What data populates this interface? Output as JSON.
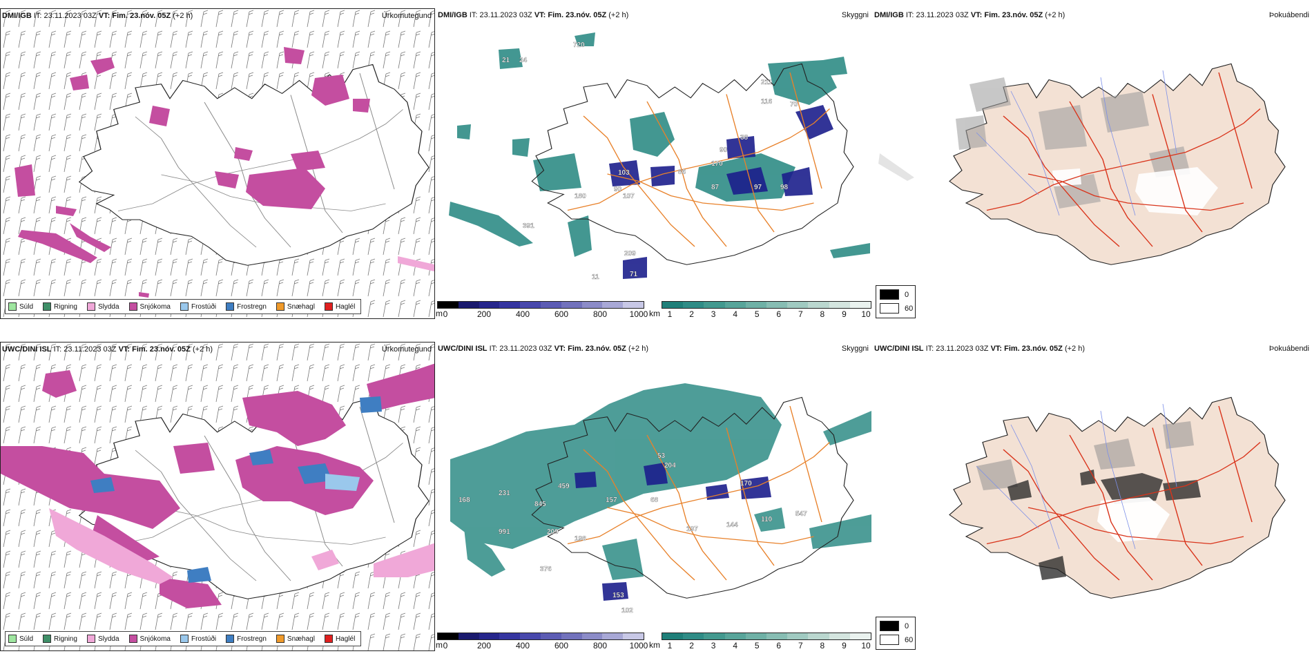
{
  "colors": {
    "sea": "#ffffff",
    "land_cloud": "#f3e1d4",
    "coast": "#222222",
    "roads_orange": "#e8812a",
    "roads_red": "#d9341b",
    "rivers_blue": "#7c8fe8",
    "snow_magenta": "#c44ea0",
    "rain_green": "#3f8f68",
    "freezing_blue": "#3f7ec2",
    "fog_teal": "#2f8c86",
    "fog_dark_blue": "#1c1f8c"
  },
  "precip_legend": [
    {
      "label": "Súld",
      "color": "#9fe6a0"
    },
    {
      "label": "Rigning",
      "color": "#3f8f68"
    },
    {
      "label": "Slydda",
      "color": "#f0a8d8"
    },
    {
      "label": "Snjókoma",
      "color": "#c44ea0"
    },
    {
      "label": "Frostúði",
      "color": "#9ac8ec"
    },
    {
      "label": "Frostregn",
      "color": "#3f7ec2"
    },
    {
      "label": "Snæhagl",
      "color": "#f09a2a"
    },
    {
      "label": "Haglél",
      "color": "#e02020"
    }
  ],
  "visibility_colorbar": {
    "m_unit": "m",
    "m_ticks": [
      "0",
      "200",
      "400",
      "600",
      "800",
      "1000"
    ],
    "m_colors": [
      "#000000",
      "#1a1a6e",
      "#26268c",
      "#3535a0",
      "#4848ac",
      "#5c5cb4",
      "#7272bc",
      "#8c8cc8",
      "#a8a8d6",
      "#c8c8e6"
    ],
    "km_unit": "km",
    "km_ticks": [
      "1",
      "2",
      "3",
      "4",
      "5",
      "6",
      "7",
      "8",
      "9",
      "10"
    ],
    "km_colors": [
      "#1f7f79",
      "#2f8c86",
      "#43998f",
      "#58a59a",
      "#6fb1a6",
      "#87bdb3",
      "#a0cac1",
      "#bad7cf",
      "#d4e5df",
      "#eaf2ef"
    ]
  },
  "cloud_legend": {
    "top": "0",
    "bottom": "60"
  },
  "panels": [
    {
      "model": "DMI/IGB",
      "it_label": "IT:",
      "it_value": "23.11.2023 03Z",
      "vt_label": "VT:",
      "vt_value": "Fim. 23.nóv. 05Z",
      "lead": "(+2 h)",
      "param": "Úrkomutegund",
      "labels": []
    },
    {
      "model": "DMI/IGB",
      "it_label": "IT:",
      "it_value": "23.11.2023 03Z",
      "vt_label": "VT:",
      "vt_value": "Fim. 23.nóv. 05Z",
      "lead": "(+2 h)",
      "param": "Skyggni",
      "labels": [
        "720",
        "21",
        "24",
        "90",
        "86",
        "103",
        "90",
        "180",
        "107",
        "170",
        "87",
        "97",
        "98",
        "70",
        "38",
        "211",
        "116",
        "209",
        "71",
        "11",
        "391"
      ]
    },
    {
      "model": "DMI/IGB",
      "it_label": "IT:",
      "it_value": "23.11.2023 03Z",
      "vt_label": "VT:",
      "vt_value": "Fim. 23.nóv. 05Z",
      "lead": "(+2 h)",
      "param": "Þokuábendi",
      "labels": []
    },
    {
      "model": "UWC/DINI ISL",
      "it_label": "IT:",
      "it_value": "23.11.2023 03Z",
      "vt_label": "VT:",
      "vt_value": "Fim. 23.nóv. 05Z",
      "lead": "(+2 h)",
      "param": "Úrkomutegund",
      "labels": []
    },
    {
      "model": "UWC/DINI ISL",
      "it_label": "IT:",
      "it_value": "23.11.2023 03Z",
      "vt_label": "VT:",
      "vt_value": "Fim. 23.nóv. 05Z",
      "lead": "(+2 h)",
      "param": "Skyggni",
      "labels": [
        "168",
        "231",
        "459",
        "845",
        "157",
        "68",
        "991",
        "209",
        "153",
        "102",
        "376",
        "198",
        "170",
        "197",
        "144",
        "110",
        "547",
        "53",
        "204"
      ]
    },
    {
      "model": "UWC/DINI ISL",
      "it_label": "IT:",
      "it_value": "23.11.2023 03Z",
      "vt_label": "VT:",
      "vt_value": "Fim. 23.nóv. 05Z",
      "lead": "(+2 h)",
      "param": "Þokuábendi",
      "labels": []
    }
  ]
}
